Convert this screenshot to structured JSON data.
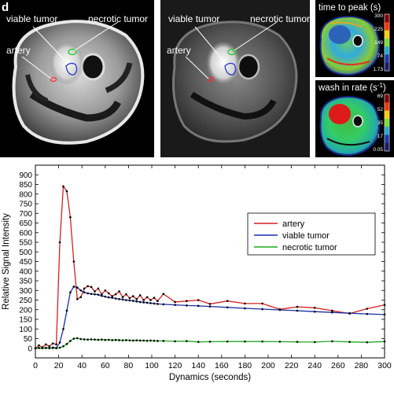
{
  "panel_letter": "d",
  "mri_panels": {
    "labels": {
      "viable_tumor": "viable tumor",
      "necrotic_tumor": "necrotic tumor",
      "artery": "artery"
    }
  },
  "maps": {
    "time_to_peak": {
      "title": "time to peak (s)",
      "scale": [
        "300",
        "225",
        "149",
        "74",
        "1.73"
      ],
      "colors": [
        "#7f0000",
        "#ff3300",
        "#ffcc00",
        "#77dd33",
        "#22aacc",
        "#1a3aa8",
        "#1a1a6a"
      ]
    },
    "wash_in_rate": {
      "title": "wash in rate (s",
      "title_sup": "-1",
      "title_end": ")",
      "scale": [
        "69",
        "52",
        "35",
        "17",
        "0.05"
      ],
      "colors": [
        "#7f0000",
        "#ff3300",
        "#ffcc00",
        "#77dd33",
        "#22aacc",
        "#1a3aa8",
        "#1a1a6a"
      ]
    }
  },
  "colors": {
    "artery": "#d62020",
    "viable": "#1a2ea8",
    "necrotic": "#1faa1f",
    "point": "#000000"
  },
  "chart_data": {
    "type": "line",
    "xlabel": "Dynamics (seconds)",
    "ylabel": "Relative Signal Intensity",
    "xlim": [
      0,
      300
    ],
    "ylim": [
      -50,
      950
    ],
    "xticks": [
      0,
      20,
      40,
      60,
      80,
      100,
      120,
      140,
      160,
      180,
      200,
      220,
      240,
      260,
      280,
      300
    ],
    "yticks": [
      0,
      50,
      100,
      150,
      200,
      250,
      300,
      350,
      400,
      450,
      500,
      550,
      600,
      650,
      700,
      750,
      800,
      850,
      900
    ],
    "legend_position": "top-right",
    "series": [
      {
        "name": "artery",
        "key": "artery",
        "x": [
          0,
          3,
          6,
          9,
          12,
          15,
          18,
          21,
          24,
          27,
          30,
          33,
          36,
          39,
          42,
          45,
          48,
          51,
          54,
          57,
          60,
          63,
          66,
          69,
          72,
          75,
          78,
          81,
          84,
          87,
          90,
          93,
          96,
          99,
          102,
          105,
          110,
          120,
          130,
          140,
          150,
          165,
          180,
          195,
          210,
          225,
          240,
          255,
          270,
          285,
          300
        ],
        "y": [
          0,
          15,
          5,
          20,
          10,
          25,
          20,
          550,
          840,
          815,
          680,
          450,
          255,
          265,
          310,
          322,
          318,
          295,
          310,
          280,
          300,
          285,
          270,
          280,
          295,
          265,
          280,
          260,
          270,
          255,
          275,
          250,
          265,
          250,
          262,
          245,
          282,
          240,
          245,
          250,
          230,
          245,
          232,
          232,
          202,
          215,
          210,
          195,
          180,
          205,
          225
        ]
      },
      {
        "name": "viable tumor",
        "key": "viable",
        "x": [
          0,
          3,
          6,
          9,
          12,
          15,
          18,
          21,
          24,
          27,
          30,
          33,
          36,
          39,
          42,
          45,
          48,
          51,
          54,
          57,
          60,
          63,
          66,
          69,
          72,
          75,
          78,
          81,
          84,
          87,
          90,
          93,
          96,
          99,
          102,
          105,
          110,
          120,
          130,
          140,
          150,
          165,
          180,
          195,
          210,
          225,
          240,
          255,
          270,
          285,
          300
        ],
        "y": [
          0,
          2,
          0,
          3,
          1,
          4,
          2,
          30,
          100,
          195,
          290,
          320,
          315,
          300,
          290,
          285,
          282,
          280,
          278,
          272,
          268,
          264,
          262,
          258,
          255,
          253,
          250,
          248,
          246,
          243,
          240,
          238,
          236,
          234,
          232,
          230,
          228,
          225,
          222,
          220,
          217,
          212,
          207,
          203,
          199,
          195,
          190,
          186,
          182,
          178,
          175
        ]
      },
      {
        "name": "necrotic tumor",
        "key": "necrotic",
        "x": [
          0,
          3,
          6,
          9,
          12,
          15,
          18,
          21,
          24,
          27,
          30,
          33,
          36,
          39,
          42,
          45,
          48,
          51,
          54,
          57,
          60,
          63,
          66,
          69,
          72,
          75,
          78,
          81,
          84,
          87,
          90,
          93,
          96,
          99,
          102,
          105,
          110,
          120,
          130,
          140,
          150,
          165,
          180,
          195,
          210,
          225,
          240,
          255,
          270,
          285,
          300
        ],
        "y": [
          0,
          1,
          0,
          1,
          0,
          1,
          0,
          3,
          10,
          22,
          38,
          50,
          52,
          48,
          46,
          45,
          46,
          45,
          44,
          45,
          43,
          44,
          42,
          43,
          42,
          41,
          42,
          41,
          40,
          41,
          40,
          40,
          39,
          40,
          39,
          38,
          38,
          36,
          37,
          33,
          34,
          35,
          35,
          35,
          34,
          33,
          32,
          36,
          33,
          31,
          35
        ]
      }
    ]
  }
}
